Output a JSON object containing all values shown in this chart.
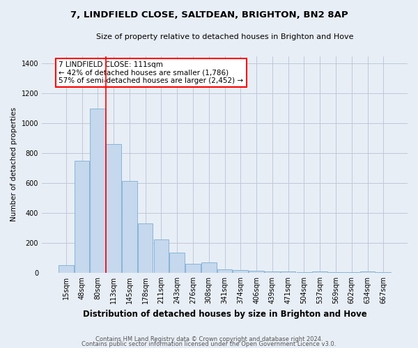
{
  "title1": "7, LINDFIELD CLOSE, SALTDEAN, BRIGHTON, BN2 8AP",
  "title2": "Size of property relative to detached houses in Brighton and Hove",
  "xlabel": "Distribution of detached houses by size in Brighton and Hove",
  "ylabel": "Number of detached properties",
  "categories": [
    "15sqm",
    "48sqm",
    "80sqm",
    "113sqm",
    "145sqm",
    "178sqm",
    "211sqm",
    "243sqm",
    "276sqm",
    "308sqm",
    "341sqm",
    "374sqm",
    "406sqm",
    "439sqm",
    "471sqm",
    "504sqm",
    "537sqm",
    "569sqm",
    "602sqm",
    "634sqm",
    "667sqm"
  ],
  "values": [
    50,
    750,
    1100,
    860,
    615,
    330,
    225,
    135,
    60,
    70,
    25,
    20,
    15,
    10,
    10,
    5,
    10,
    5,
    5,
    10,
    5
  ],
  "bar_color": "#c5d8ed",
  "bar_edge_color": "#7aaed4",
  "grid_color": "#c0c8d8",
  "background_color": "#e8eef6",
  "redline_x": 2.5,
  "annotation_text": "7 LINDFIELD CLOSE: 111sqm\n← 42% of detached houses are smaller (1,786)\n57% of semi-detached houses are larger (2,452) →",
  "annotation_box_color": "white",
  "annotation_box_edge": "red",
  "footer1": "Contains HM Land Registry data © Crown copyright and database right 2024.",
  "footer2": "Contains public sector information licensed under the Open Government Licence v3.0.",
  "ylim": [
    0,
    1450
  ],
  "yticks": [
    0,
    200,
    400,
    600,
    800,
    1000,
    1200,
    1400
  ],
  "title1_fontsize": 9.5,
  "title2_fontsize": 8,
  "xlabel_fontsize": 8.5,
  "ylabel_fontsize": 7.5,
  "tick_fontsize": 7,
  "annotation_fontsize": 7.5,
  "footer_fontsize": 6
}
